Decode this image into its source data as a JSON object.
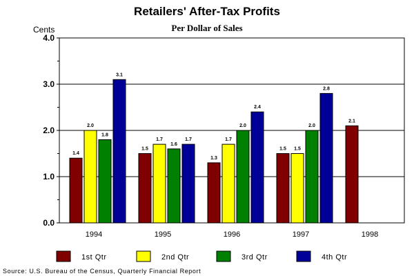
{
  "chart_data": {
    "type": "bar",
    "title": "Retailers' After-Tax Profits",
    "subtitle": "Per Dollar of Sales",
    "ylabel": "Cents",
    "xlabel": "",
    "ylim": [
      0,
      4
    ],
    "yticks": [
      "0.0",
      "1.0",
      "2.0",
      "3.0",
      "4.0"
    ],
    "grid": true,
    "categories": [
      "1994",
      "1995",
      "1996",
      "1997",
      "1998"
    ],
    "series": [
      {
        "name": "1st Qtr",
        "color": "#800000",
        "values": [
          1.4,
          1.5,
          1.3,
          1.5,
          2.1
        ],
        "labels": [
          "1.4",
          "1.5",
          "1.3",
          "1.5",
          "2.1"
        ]
      },
      {
        "name": "2nd Qtr",
        "color": "#ffff00",
        "values": [
          2.0,
          1.7,
          1.7,
          1.5,
          null
        ],
        "labels": [
          "2.0",
          "1.7",
          "1.7",
          "1.5",
          null
        ]
      },
      {
        "name": "3rd Qtr",
        "color": "#008000",
        "values": [
          1.8,
          1.6,
          2.0,
          2.0,
          null
        ],
        "labels": [
          "1.8",
          "1.6",
          "2.0",
          "2.0",
          null
        ]
      },
      {
        "name": "4th Qtr",
        "color": "#000099",
        "values": [
          3.1,
          1.7,
          2.4,
          2.8,
          null
        ],
        "labels": [
          "3.1",
          "1.7",
          "2.4",
          "2.8",
          null
        ]
      }
    ],
    "legend_position": "bottom",
    "source": "Source: U.S. Bureau of the Census, Quarterly Financial Report"
  }
}
